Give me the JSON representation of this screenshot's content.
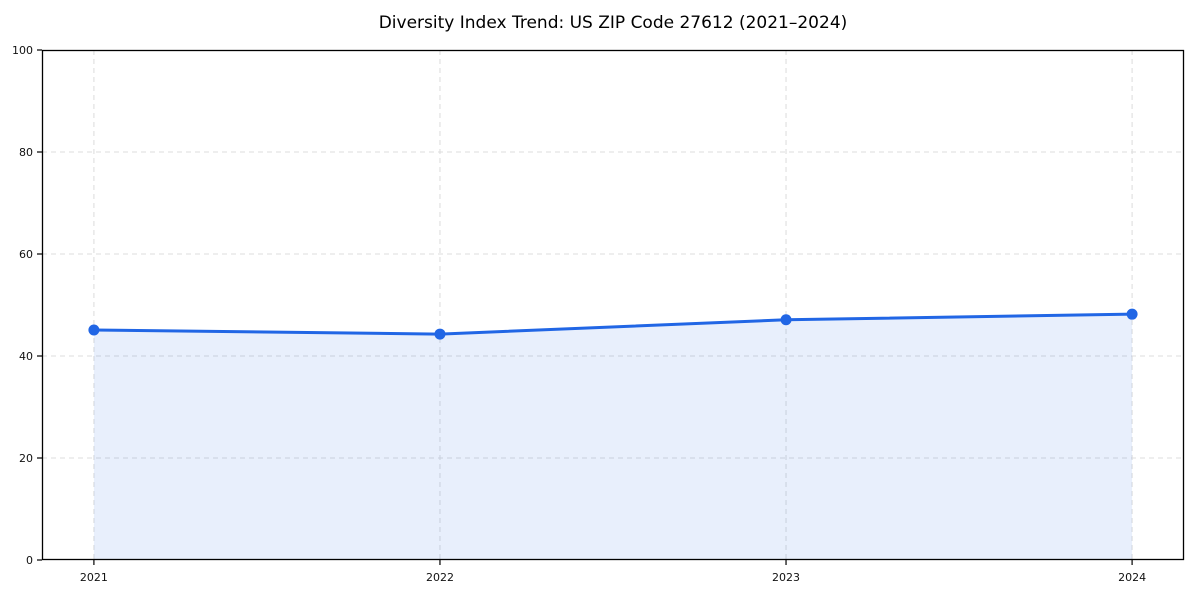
{
  "page": {
    "background": "#ffffff"
  },
  "chart_data": {
    "type": "area",
    "title": "Diversity Index Trend: US ZIP Code 27612 (2021–2024)",
    "x": [
      2021,
      2022,
      2023,
      2024
    ],
    "x_tick_labels": [
      "2021",
      "2022",
      "2023",
      "2024"
    ],
    "series": [
      {
        "name": "Diversity Index",
        "values": [
          45.1,
          44.3,
          47.1,
          48.2
        ]
      }
    ],
    "xlabel": "",
    "ylabel": "",
    "xlim": [
      2020.85,
      2024.15
    ],
    "ylim": [
      0,
      100
    ],
    "yticks": [
      0,
      20,
      40,
      60,
      80,
      100
    ],
    "grid": true,
    "grid_style": "dashed",
    "legend": false,
    "colors": {
      "line": "#2166e5",
      "marker": "#2166e5",
      "fill": "rgba(33, 102, 229, 0.10)",
      "grid": "#dcdcdc",
      "axis": "#000000",
      "tick_label": "#111111",
      "title": "#000000"
    }
  }
}
